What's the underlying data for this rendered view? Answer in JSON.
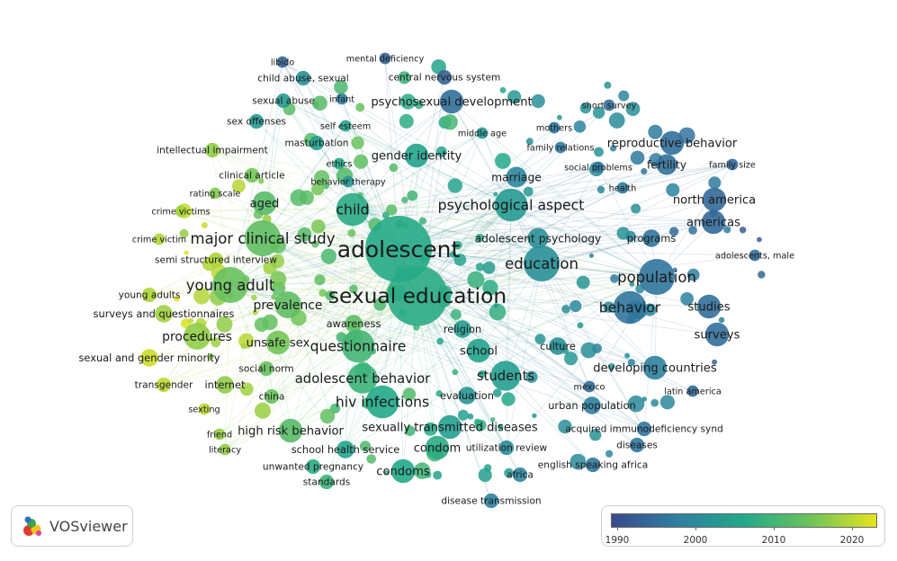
{
  "legend": {
    "min_year": 1988,
    "max_year": 2022,
    "ticks": [
      "1990",
      "2000",
      "2010",
      "2020"
    ],
    "colors": [
      "#3b4a8c",
      "#2e7fa0",
      "#22a88a",
      "#6cc35a",
      "#e8e41c"
    ]
  },
  "branding": {
    "logo_text": "VOSviewer"
  },
  "labels": [
    {
      "text": "adolescent",
      "year": 2005.5,
      "weight": 10
    },
    {
      "text": "sexual education",
      "year": 2006,
      "weight": 9
    },
    {
      "text": "major clinical study",
      "year": 2012,
      "weight": 5
    },
    {
      "text": "child",
      "year": 2006,
      "weight": 4.5
    },
    {
      "text": "psychological aspect",
      "year": 2002,
      "weight": 4.5
    },
    {
      "text": "education",
      "year": 2000,
      "weight": 5
    },
    {
      "text": "population",
      "year": 1995,
      "weight": 5
    },
    {
      "text": "young adult",
      "year": 2013,
      "weight": 5
    },
    {
      "text": "behavior",
      "year": 1995,
      "weight": 4.5
    },
    {
      "text": "questionnaire",
      "year": 2009,
      "weight": 4.5
    },
    {
      "text": "hiv infections",
      "year": 2005,
      "weight": 4.5
    },
    {
      "text": "adolescent behavior",
      "year": 2008,
      "weight": 4
    },
    {
      "text": "students",
      "year": 2003,
      "weight": 4
    },
    {
      "text": "aged",
      "year": 2011,
      "weight": 3
    },
    {
      "text": "prevalence",
      "year": 2012,
      "weight": 3.5
    },
    {
      "text": "procedures",
      "year": 2016,
      "weight": 3.5
    },
    {
      "text": "unsafe sex",
      "year": 2014,
      "weight": 3
    },
    {
      "text": "gender identity",
      "year": 2004,
      "weight": 3
    },
    {
      "text": "psychosexual development",
      "year": 1994,
      "weight": 3
    },
    {
      "text": "condom",
      "year": 2006,
      "weight": 3
    },
    {
      "text": "condoms",
      "year": 2005,
      "weight": 3
    },
    {
      "text": "high risk behavior",
      "year": 2011,
      "weight": 3
    },
    {
      "text": "sexually transmitted diseases",
      "year": 2003,
      "weight": 3
    },
    {
      "text": "north america",
      "year": 1993,
      "weight": 3
    },
    {
      "text": "americas",
      "year": 1993,
      "weight": 3
    },
    {
      "text": "studies",
      "year": 1994,
      "weight": 3
    },
    {
      "text": "surveys",
      "year": 1994,
      "weight": 3
    },
    {
      "text": "developing countries",
      "year": 1997,
      "weight": 3
    },
    {
      "text": "reproductive behavior",
      "year": 1994,
      "weight": 3
    },
    {
      "text": "fertility",
      "year": 1994,
      "weight": 2.5
    },
    {
      "text": "school",
      "year": 2004,
      "weight": 3
    },
    {
      "text": "marriage",
      "year": 1998,
      "weight": 2.5
    },
    {
      "text": "adolescent psychology",
      "year": 2000,
      "weight": 2.5
    },
    {
      "text": "programs",
      "year": 1995,
      "weight": 2
    },
    {
      "text": "culture",
      "year": 2000,
      "weight": 2
    },
    {
      "text": "religion",
      "year": 2003,
      "weight": 2
    },
    {
      "text": "awareness",
      "year": 2012,
      "weight": 2
    },
    {
      "text": "evaluation",
      "year": 2001,
      "weight": 2
    },
    {
      "text": "urban population",
      "year": 1997,
      "weight": 2
    },
    {
      "text": "acquired immunodeficiency synd",
      "year": 1995,
      "weight": 1.5
    },
    {
      "text": "diseases",
      "year": 1995,
      "weight": 1.5
    },
    {
      "text": "english speaking africa",
      "year": 1995,
      "weight": 1.5
    },
    {
      "text": "utilization review",
      "year": 1999,
      "weight": 1.5
    },
    {
      "text": "africa",
      "year": 1998,
      "weight": 1.5
    },
    {
      "text": "disease transmission",
      "year": 1997,
      "weight": 1.5
    },
    {
      "text": "school health service",
      "year": 2004,
      "weight": 2
    },
    {
      "text": "unwanted pregnancy",
      "year": 2006,
      "weight": 1.5
    },
    {
      "text": "standards",
      "year": 2008,
      "weight": 1.5
    },
    {
      "text": "literacy",
      "year": 2016,
      "weight": 1
    },
    {
      "text": "friend",
      "year": 2016,
      "weight": 1
    },
    {
      "text": "sexting",
      "year": 2019,
      "weight": 1
    },
    {
      "text": "china",
      "year": 2013,
      "weight": 1.5
    },
    {
      "text": "internet",
      "year": 2016,
      "weight": 2
    },
    {
      "text": "social norm",
      "year": 2013,
      "weight": 1.5
    },
    {
      "text": "transgender",
      "year": 2019,
      "weight": 1.5
    },
    {
      "text": "sexual and gender minority",
      "year": 2020,
      "weight": 2
    },
    {
      "text": "surveys and questionnaires",
      "year": 2017,
      "weight": 2
    },
    {
      "text": "young adults",
      "year": 2018,
      "weight": 1.5
    },
    {
      "text": "semi structured interview",
      "year": 2018,
      "weight": 1.5
    },
    {
      "text": "crime victim",
      "year": 2018,
      "weight": 1
    },
    {
      "text": "crime victims",
      "year": 2017,
      "weight": 1
    },
    {
      "text": "rating scale",
      "year": 2015,
      "weight": 1
    },
    {
      "text": "clinical article",
      "year": 2014,
      "weight": 1.5
    },
    {
      "text": "intellectual impairment",
      "year": 2016,
      "weight": 1.5
    },
    {
      "text": "sex offenses",
      "year": 2002,
      "weight": 1.5
    },
    {
      "text": "masturbation",
      "year": 2003,
      "weight": 1.5
    },
    {
      "text": "self esteem",
      "year": 2004,
      "weight": 1
    },
    {
      "text": "ethics",
      "year": 2005,
      "weight": 1
    },
    {
      "text": "behavior therapy",
      "year": 2001,
      "weight": 1
    },
    {
      "text": "sexual abuse",
      "year": 2002,
      "weight": 1.5
    },
    {
      "text": "infant",
      "year": 1996,
      "weight": 1
    },
    {
      "text": "child abuse, sexual",
      "year": 2000,
      "weight": 1.5
    },
    {
      "text": "libido",
      "year": 1993,
      "weight": 1
    },
    {
      "text": "mental deficiency",
      "year": 1992,
      "weight": 1
    },
    {
      "text": "central nervous system",
      "year": 1992,
      "weight": 1.5
    },
    {
      "text": "middle age",
      "year": 2002,
      "weight": 1
    },
    {
      "text": "mothers",
      "year": 1995,
      "weight": 1
    },
    {
      "text": "family relations",
      "year": 1996,
      "weight": 1
    },
    {
      "text": "social problems",
      "year": 1995,
      "weight": 1
    },
    {
      "text": "health",
      "year": 1996,
      "weight": 1
    },
    {
      "text": "short survey",
      "year": 1994,
      "weight": 1
    },
    {
      "text": "family size",
      "year": 1993,
      "weight": 1
    },
    {
      "text": "adolescents, male",
      "year": 1994,
      "weight": 1
    },
    {
      "text": "latin america",
      "year": 1993,
      "weight": 1
    },
    {
      "text": "mexico",
      "year": 1994,
      "weight": 1
    }
  ]
}
